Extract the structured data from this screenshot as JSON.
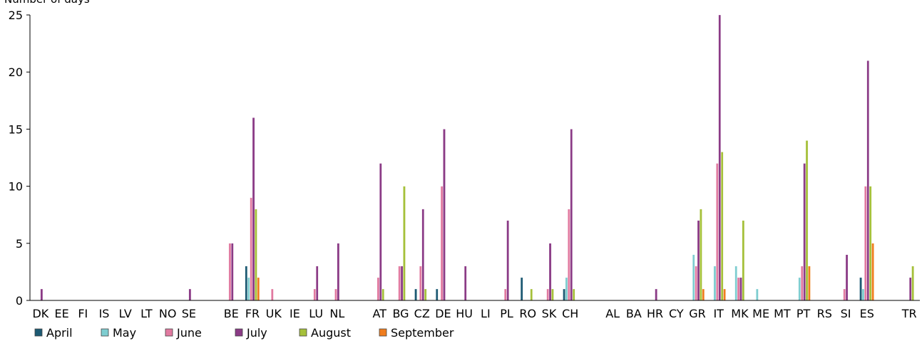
{
  "chart_data": {
    "type": "bar",
    "title": "",
    "xlabel": "",
    "ylabel": "Number of days",
    "ylim": [
      0,
      25
    ],
    "yticks": [
      0,
      5,
      10,
      15,
      20,
      25
    ],
    "grid": false,
    "legend_position": "bottom-left",
    "categories": [
      "DK",
      "EE",
      "FI",
      "IS",
      "LV",
      "LT",
      "NO",
      "SE",
      "",
      "BE",
      "FR",
      "UK",
      "IE",
      "LU",
      "NL",
      "",
      "AT",
      "BG",
      "CZ",
      "DE",
      "HU",
      "LI",
      "PL",
      "RO",
      "SK",
      "CH",
      "",
      "AL",
      "BA",
      "HR",
      "CY",
      "GR",
      "IT",
      "MK",
      "ME",
      "MT",
      "PT",
      "RS",
      "SI",
      "ES",
      "",
      "TR"
    ],
    "series": [
      {
        "name": "April",
        "color": "#1d5a73",
        "values": [
          0,
          0,
          0,
          0,
          0,
          0,
          0,
          0,
          0,
          0,
          3,
          0,
          0,
          0,
          0,
          0,
          0,
          0,
          1,
          1,
          0,
          0,
          0,
          2,
          0,
          1,
          0,
          0,
          0,
          0,
          0,
          0,
          0,
          0,
          0,
          0,
          0,
          0,
          0,
          2,
          0,
          0
        ]
      },
      {
        "name": "May",
        "color": "#7ecdd0",
        "values": [
          0,
          0,
          0,
          0,
          0,
          0,
          0,
          0,
          0,
          0,
          2,
          0,
          0,
          0,
          0,
          0,
          0,
          0,
          0,
          0,
          0,
          0,
          0,
          0,
          0,
          2,
          0,
          0,
          0,
          0,
          0,
          4,
          3,
          3,
          1,
          0,
          2,
          0,
          0,
          1,
          0,
          0
        ]
      },
      {
        "name": "June",
        "color": "#e17aa0",
        "values": [
          0,
          0,
          0,
          0,
          0,
          0,
          0,
          0,
          0,
          5,
          9,
          1,
          0,
          1,
          1,
          0,
          2,
          3,
          3,
          10,
          0,
          0,
          1,
          0,
          1,
          8,
          0,
          0,
          0,
          0,
          0,
          3,
          12,
          2,
          0,
          0,
          3,
          0,
          1,
          10,
          0,
          0
        ]
      },
      {
        "name": "July",
        "color": "#8b3b86",
        "values": [
          1,
          0,
          0,
          0,
          0,
          0,
          0,
          1,
          0,
          5,
          16,
          0,
          0,
          3,
          5,
          0,
          12,
          3,
          8,
          15,
          3,
          0,
          7,
          0,
          5,
          15,
          0,
          0,
          0,
          1,
          0,
          7,
          25,
          2,
          0,
          0,
          12,
          0,
          4,
          21,
          0,
          2
        ]
      },
      {
        "name": "August",
        "color": "#a5c03a",
        "values": [
          0,
          0,
          0,
          0,
          0,
          0,
          0,
          0,
          0,
          0,
          8,
          0,
          0,
          0,
          0,
          0,
          1,
          10,
          1,
          0,
          0,
          0,
          0,
          1,
          1,
          1,
          0,
          0,
          0,
          0,
          0,
          8,
          13,
          7,
          0,
          0,
          14,
          0,
          0,
          10,
          0,
          3
        ]
      },
      {
        "name": "September",
        "color": "#f07d1e",
        "values": [
          0,
          0,
          0,
          0,
          0,
          0,
          0,
          0,
          0,
          0,
          2,
          0,
          0,
          0,
          0,
          0,
          0,
          0,
          0,
          0,
          0,
          0,
          0,
          0,
          0,
          0,
          0,
          0,
          0,
          0,
          0,
          1,
          1,
          0,
          0,
          0,
          3,
          0,
          0,
          5,
          0,
          0
        ]
      }
    ]
  }
}
